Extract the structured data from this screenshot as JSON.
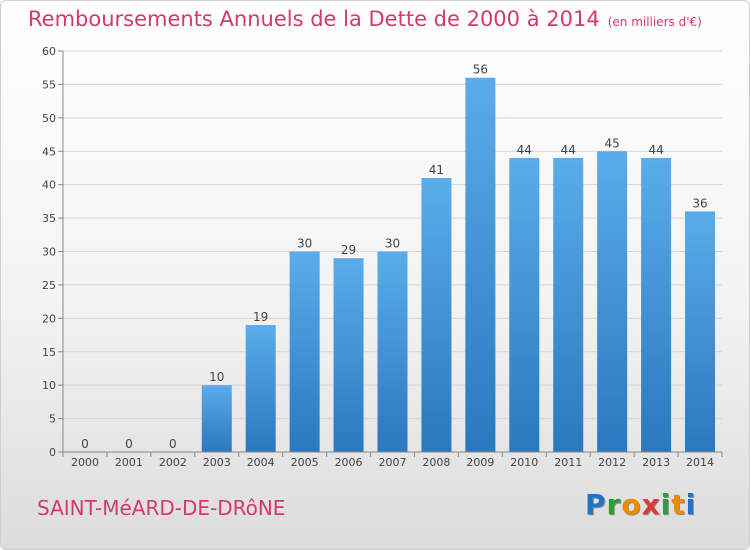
{
  "header": {
    "title": "Remboursements Annuels de la Dette de 2000 à 2014",
    "unit": "(en milliers d'€)"
  },
  "commune": "SAINT-MéARD-DE-DRôNE",
  "logo": {
    "letters": [
      "P",
      "r",
      "o",
      "x",
      "i",
      "t",
      "i"
    ],
    "colors": [
      "#1f74c8",
      "#2f9c3c",
      "#f08a00",
      "#d43f3a",
      "#2f9c3c",
      "#f08a00",
      "#1f74c8"
    ]
  },
  "chart_data": {
    "type": "bar",
    "title": "Remboursements Annuels de la Dette de 2000 à 2014",
    "categories": [
      "2000",
      "2001",
      "2002",
      "2003",
      "2004",
      "2005",
      "2006",
      "2007",
      "2008",
      "2009",
      "2010",
      "2011",
      "2012",
      "2013",
      "2014"
    ],
    "values": [
      0,
      0,
      0,
      10,
      19,
      30,
      29,
      30,
      41,
      56,
      44,
      44,
      45,
      44,
      36
    ],
    "data_labels": [
      "0",
      "0",
      "0",
      "10",
      "19",
      "30",
      "29",
      "30",
      "41",
      "56",
      "44",
      "44",
      "45",
      "44",
      "36"
    ],
    "yticks": [
      0,
      5,
      10,
      15,
      20,
      25,
      30,
      35,
      40,
      45,
      50,
      55,
      60
    ],
    "ylim": [
      0,
      60
    ],
    "grid": true,
    "bar_color": "#3a8fd6"
  }
}
